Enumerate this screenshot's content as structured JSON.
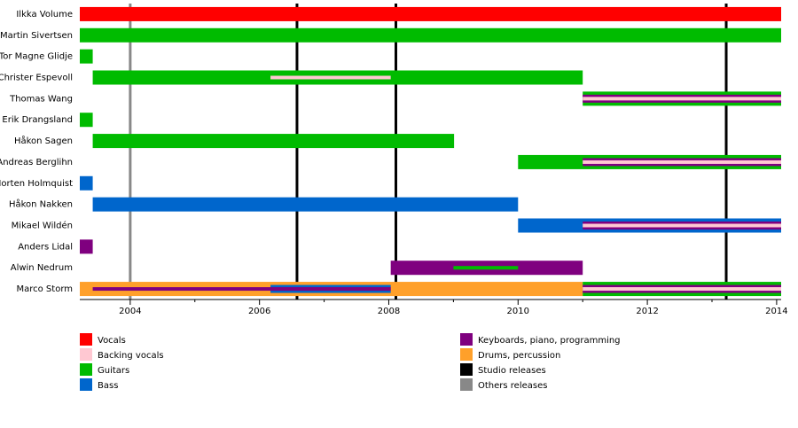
{
  "chart_data": {
    "type": "timeline",
    "members": [
      {
        "name": "Ilkka Volume",
        "spans": [
          {
            "series": 0,
            "start": 2003.22,
            "end": 2014.07,
            "width": "full"
          }
        ]
      },
      {
        "name": "Martin Sivertsen",
        "spans": [
          {
            "series": 2,
            "start": 2003.22,
            "end": 2014.07,
            "width": "full"
          }
        ]
      },
      {
        "name": "Tor Magne Glidje",
        "spans": [
          {
            "series": 2,
            "start": 2003.22,
            "end": 2003.42,
            "width": "full"
          }
        ]
      },
      {
        "name": "Christer Espevoll",
        "spans": [
          {
            "series": 2,
            "start": 2003.42,
            "end": 2011.0,
            "width": "full"
          },
          {
            "series": 1,
            "start": 2006.17,
            "end": 2008.03,
            "width": "thin"
          }
        ]
      },
      {
        "name": "Thomas Wang",
        "spans": [
          {
            "series": 2,
            "start": 2011.0,
            "end": 2014.07,
            "width": "full"
          },
          {
            "series": 4,
            "start": 2011.0,
            "end": 2014.07,
            "width": "mid"
          },
          {
            "series": 1,
            "start": 2011.0,
            "end": 2014.07,
            "width": "thin"
          }
        ]
      },
      {
        "name": "Erik Drangsland",
        "spans": [
          {
            "series": 2,
            "start": 2003.22,
            "end": 2003.42,
            "width": "full"
          }
        ]
      },
      {
        "name": "Håkon Sagen",
        "spans": [
          {
            "series": 2,
            "start": 2003.42,
            "end": 2009.01,
            "width": "full"
          }
        ]
      },
      {
        "name": "Andreas Berglihn",
        "spans": [
          {
            "series": 2,
            "start": 2010.0,
            "end": 2014.07,
            "width": "full"
          },
          {
            "series": 4,
            "start": 2011.0,
            "end": 2014.07,
            "width": "mid"
          },
          {
            "series": 1,
            "start": 2011.0,
            "end": 2014.07,
            "width": "thin"
          }
        ]
      },
      {
        "name": "Morten Holmquist",
        "spans": [
          {
            "series": 3,
            "start": 2003.22,
            "end": 2003.42,
            "width": "full"
          }
        ]
      },
      {
        "name": "Håkon Nakken",
        "spans": [
          {
            "series": 3,
            "start": 2003.42,
            "end": 2010.0,
            "width": "full"
          }
        ]
      },
      {
        "name": "Mikael Wildén",
        "spans": [
          {
            "series": 3,
            "start": 2010.0,
            "end": 2014.07,
            "width": "full"
          },
          {
            "series": 4,
            "start": 2011.0,
            "end": 2014.07,
            "width": "mid"
          },
          {
            "series": 1,
            "start": 2011.0,
            "end": 2014.07,
            "width": "thin"
          }
        ]
      },
      {
        "name": "Anders Lidal",
        "spans": [
          {
            "series": 4,
            "start": 2003.22,
            "end": 2003.42,
            "width": "full"
          }
        ]
      },
      {
        "name": "Alwin Nedrum",
        "spans": [
          {
            "series": 4,
            "start": 2008.03,
            "end": 2011.0,
            "width": "full"
          },
          {
            "series": 2,
            "start": 2009.0,
            "end": 2010.0,
            "width": "thin"
          }
        ]
      },
      {
        "name": "Marco Storm",
        "spans": [
          {
            "series": 5,
            "start": 2003.22,
            "end": 2011.0,
            "width": "full"
          },
          {
            "series": 3,
            "start": 2006.17,
            "end": 2008.03,
            "width": "mid"
          },
          {
            "series": 4,
            "start": 2003.42,
            "end": 2008.03,
            "width": "thin"
          },
          {
            "series": 2,
            "start": 2011.0,
            "end": 2014.07,
            "width": "full"
          },
          {
            "series": 4,
            "start": 2011.0,
            "end": 2014.07,
            "width": "mid"
          },
          {
            "series": 1,
            "start": 2011.0,
            "end": 2014.07,
            "width": "thin"
          }
        ]
      }
    ],
    "series": [
      {
        "name": "Vocals",
        "color": "#ff0000"
      },
      {
        "name": "Backing vocals",
        "color": "#ffc8d2"
      },
      {
        "name": "Guitars",
        "color": "#00bb00"
      },
      {
        "name": "Bass",
        "color": "#0066cc"
      },
      {
        "name": "Keyboards, piano, programming",
        "color": "#7f007f"
      },
      {
        "name": "Drums, percussion",
        "color": "#ffa02a"
      },
      {
        "name": "Studio releases",
        "color": "#000000"
      },
      {
        "name": "Others releases",
        "color": "#888888"
      }
    ],
    "releases": [
      {
        "series": 7,
        "x": 2004.0
      },
      {
        "series": 6,
        "x": 2006.58
      },
      {
        "series": 6,
        "x": 2008.11
      },
      {
        "series": 6,
        "x": 2013.22
      }
    ],
    "xlim": [
      2003.22,
      2014.07
    ],
    "xticks": [
      2004,
      2006,
      2008,
      2010,
      2012,
      2014
    ],
    "xminorticks": [
      2005,
      2007,
      2009,
      2011,
      2013
    ]
  }
}
